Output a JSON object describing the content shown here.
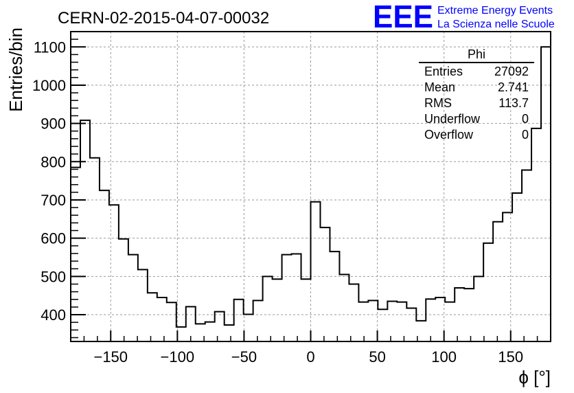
{
  "chart_data": {
    "type": "histogram",
    "title": "CERN-02-2015-04-07-00032",
    "xlabel": "ϕ [°]",
    "ylabel": "Entries/bin",
    "xlim": [
      -180,
      180
    ],
    "ylim": [
      330,
      1140
    ],
    "grid": true,
    "bin_width": 7.2,
    "x_ticks": [
      -150,
      -100,
      -50,
      0,
      50,
      100,
      150
    ],
    "x_tick_labels": [
      "−150",
      "−100",
      "−50",
      "0",
      "50",
      "100",
      "150"
    ],
    "y_ticks": [
      400,
      500,
      600,
      700,
      800,
      900,
      1000,
      1100
    ],
    "y_tick_labels": [
      "400",
      "500",
      "600",
      "700",
      "800",
      "900",
      "1000",
      "1100"
    ],
    "values": [
      785,
      908,
      810,
      725,
      687,
      598,
      557,
      518,
      457,
      445,
      432,
      368,
      421,
      376,
      381,
      408,
      373,
      440,
      401,
      437,
      500,
      493,
      557,
      559,
      493,
      695,
      628,
      565,
      505,
      480,
      433,
      437,
      414,
      435,
      433,
      417,
      384,
      441,
      445,
      433,
      470,
      468,
      500,
      587,
      643,
      667,
      718,
      778,
      887,
      1100
    ],
    "stats_box": {
      "title": "Phi",
      "rows": [
        {
          "label": "Entries",
          "value": "27092"
        },
        {
          "label": "Mean",
          "value": "2.741"
        },
        {
          "label": "RMS",
          "value": "113.7"
        },
        {
          "label": "Underflow",
          "value": "0"
        },
        {
          "label": "Overflow",
          "value": "0"
        }
      ]
    },
    "logo": {
      "mark": "EEE",
      "line1": "Extreme Energy Events",
      "line2": "La Scienza nelle Scuole",
      "color": "#0000ff"
    },
    "line_color": "#000000",
    "grid_color": "#999999"
  }
}
